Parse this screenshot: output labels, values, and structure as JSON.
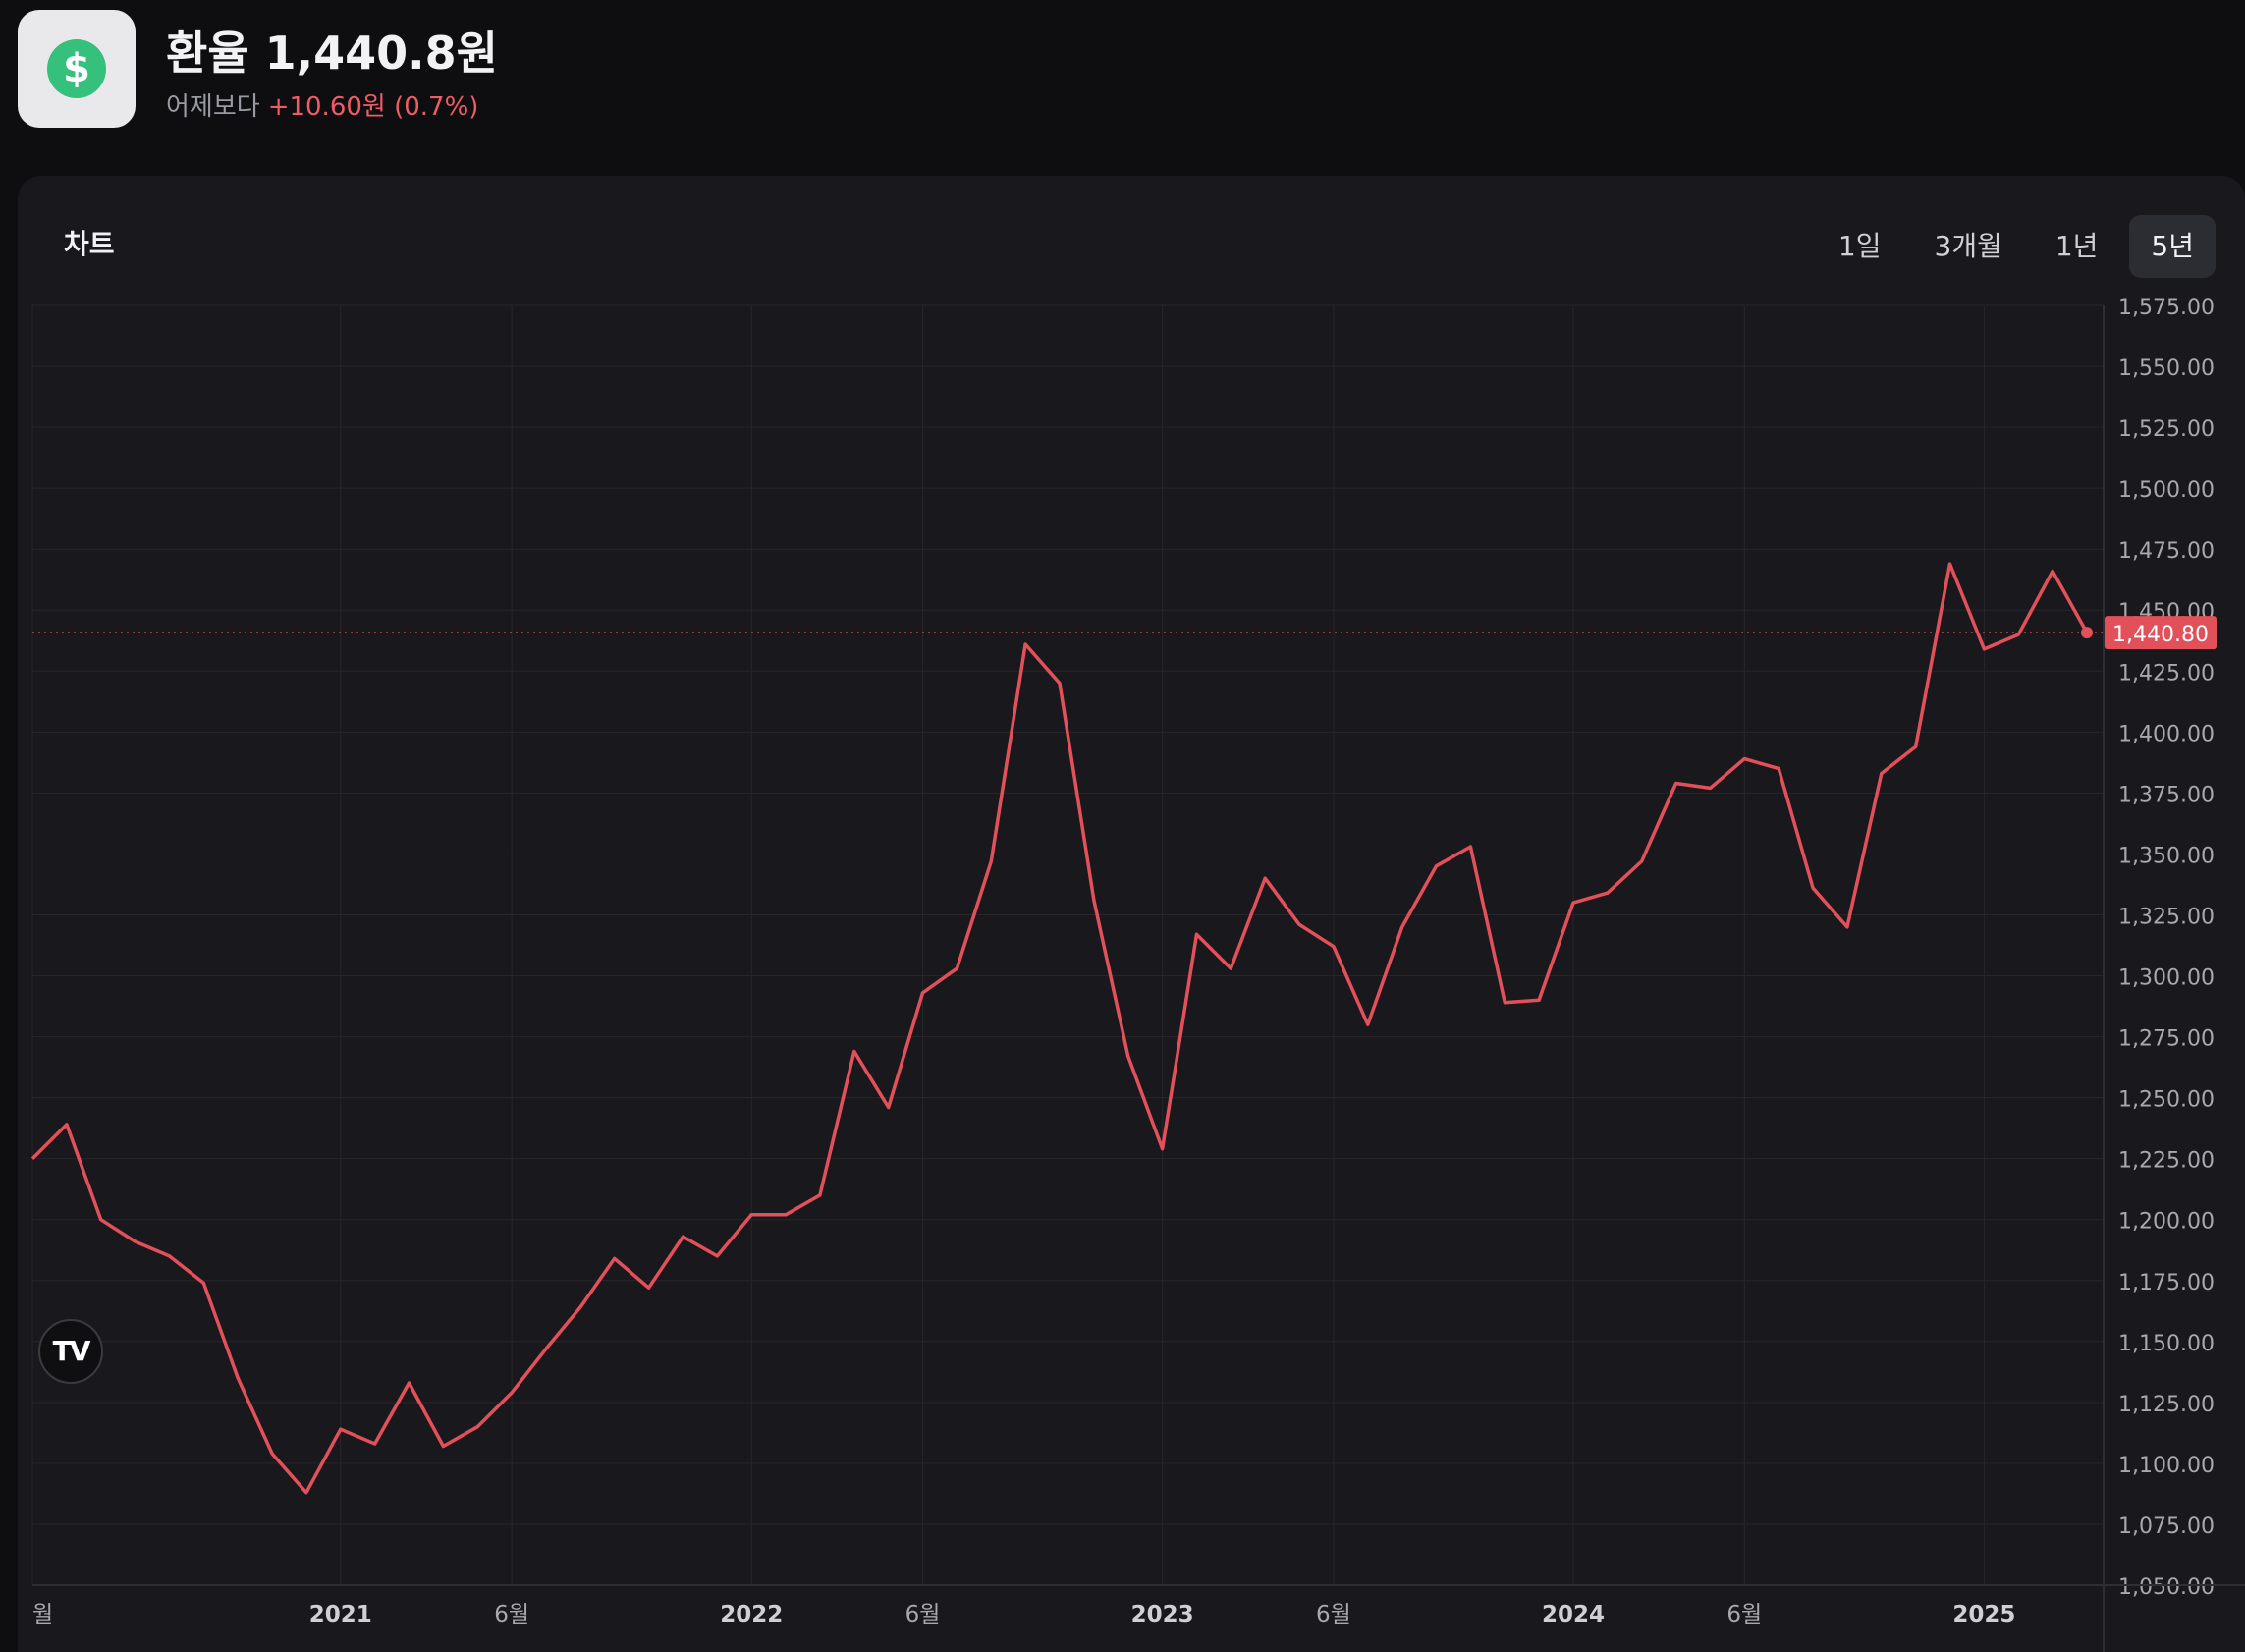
{
  "header": {
    "title": "환율 1,440.8원",
    "compare_label": "어제보다",
    "change": "+10.60원 (0.7%)",
    "logo_symbol": "$",
    "logo_icon": "dollar-icon"
  },
  "card": {
    "title": "차트",
    "tabs": [
      {
        "label": "1일",
        "active": false
      },
      {
        "label": "3개월",
        "active": false
      },
      {
        "label": "1년",
        "active": false
      },
      {
        "label": "5년",
        "active": true
      }
    ],
    "tv_logo": "TV"
  },
  "colors": {
    "line": "#e2505a",
    "last_price_bg": "#e2505a",
    "grid": "#26262c",
    "axis_text": "#a8a8b0",
    "background": "#19191d",
    "logo_green": "#35c07b"
  },
  "chart_data": {
    "type": "line",
    "series": [
      {
        "x": [
          "2020-04",
          "2020-05",
          "2020-06",
          "2020-07",
          "2020-08",
          "2020-09",
          "2020-10",
          "2020-11",
          "2020-12",
          "2021-01",
          "2021-02",
          "2021-03",
          "2021-04",
          "2021-05",
          "2021-06",
          "2021-07",
          "2021-08",
          "2021-09",
          "2021-10",
          "2021-11",
          "2021-12",
          "2022-01",
          "2022-02",
          "2022-03",
          "2022-04",
          "2022-05",
          "2022-06",
          "2022-07",
          "2022-08",
          "2022-09",
          "2022-10",
          "2022-11",
          "2022-12",
          "2023-01",
          "2023-02",
          "2023-03",
          "2023-04",
          "2023-05",
          "2023-06",
          "2023-07",
          "2023-08",
          "2023-09",
          "2023-10",
          "2023-11",
          "2023-12",
          "2024-01",
          "2024-02",
          "2024-03",
          "2024-04",
          "2024-05",
          "2024-06",
          "2024-07",
          "2024-08",
          "2024-09",
          "2024-10",
          "2024-11",
          "2024-12",
          "2025-01",
          "2025-02",
          "2025-03",
          "2025-04"
        ],
        "values": [
          1225,
          1239,
          1200,
          1191,
          1185,
          1174,
          1135,
          1104,
          1088,
          1114,
          1108,
          1133,
          1107,
          1115,
          1129,
          1147,
          1164,
          1184,
          1172,
          1193,
          1185,
          1202,
          1202,
          1210,
          1269,
          1246,
          1293,
          1303,
          1347,
          1436,
          1420,
          1331,
          1267,
          1229,
          1317,
          1303,
          1340,
          1321,
          1312,
          1280,
          1320,
          1345,
          1353,
          1289,
          1290,
          1330,
          1334,
          1347,
          1379,
          1377,
          1389,
          1385,
          1336,
          1320,
          1383,
          1394,
          1469,
          1434,
          1440,
          1466,
          1440.8
        ]
      }
    ],
    "last_value_label": "1,440.80",
    "y_ticks": [
      "1,575.00",
      "1,550.00",
      "1,525.00",
      "1,500.00",
      "1,475.00",
      "1,450.00",
      "1,425.00",
      "1,400.00",
      "1,375.00",
      "1,350.00",
      "1,325.00",
      "1,300.00",
      "1,275.00",
      "1,250.00",
      "1,225.00",
      "1,200.00",
      "1,175.00",
      "1,150.00",
      "1,125.00",
      "1,100.00",
      "1,075.00",
      "1,050.00"
    ],
    "x_ticks": [
      {
        "label": "월",
        "x": "2020-04",
        "bold": false
      },
      {
        "label": "2021",
        "x": "2021-01",
        "bold": true
      },
      {
        "label": "6월",
        "x": "2021-06",
        "bold": false
      },
      {
        "label": "2022",
        "x": "2022-01",
        "bold": true
      },
      {
        "label": "6월",
        "x": "2022-06",
        "bold": false
      },
      {
        "label": "2023",
        "x": "2023-01",
        "bold": true
      },
      {
        "label": "6월",
        "x": "2023-06",
        "bold": false
      },
      {
        "label": "2024",
        "x": "2024-01",
        "bold": true
      },
      {
        "label": "6월",
        "x": "2024-06",
        "bold": false
      },
      {
        "label": "2025",
        "x": "2025-01",
        "bold": true
      }
    ],
    "ylim": [
      1050,
      1575
    ],
    "grid": true
  }
}
